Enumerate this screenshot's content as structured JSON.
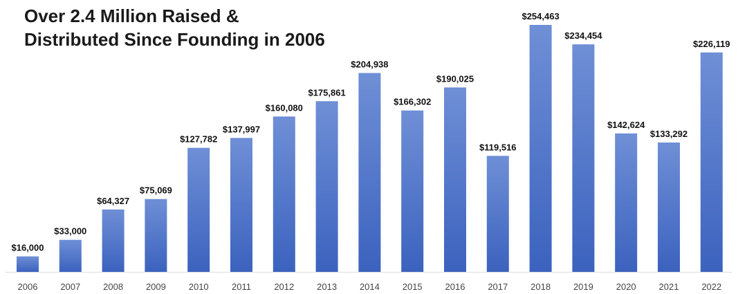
{
  "chart_data": {
    "type": "bar",
    "title_lines": [
      "Over 2.4 Million Raised &",
      "Distributed Since Founding in 2006"
    ],
    "categories": [
      "2006",
      "2007",
      "2008",
      "2009",
      "2010",
      "2011",
      "2012",
      "2013",
      "2014",
      "2015",
      "2016",
      "2017",
      "2018",
      "2019",
      "2020",
      "2021",
      "2022"
    ],
    "values": [
      16000,
      33000,
      64327,
      75069,
      127782,
      137997,
      160080,
      175861,
      204938,
      166302,
      190025,
      119516,
      254463,
      234454,
      142624,
      133292,
      226119
    ],
    "value_labels": [
      "$16,000",
      "$33,000",
      "$64,327",
      "$75,069",
      "$127,782",
      "$137,997",
      "$160,080",
      "$175,861",
      "$204,938",
      "$166,302",
      "$190,025",
      "$119,516",
      "$254,463",
      "$234,454",
      "$142,624",
      "$133,292",
      "$226,119"
    ],
    "xlabel": "",
    "ylabel": "",
    "ylim": [
      0,
      260000
    ],
    "grid": false,
    "legend": "none",
    "bar_color_top": "#6f8fd6",
    "bar_color_bottom": "#3b62be",
    "axis_color": "#d9d9d9"
  }
}
